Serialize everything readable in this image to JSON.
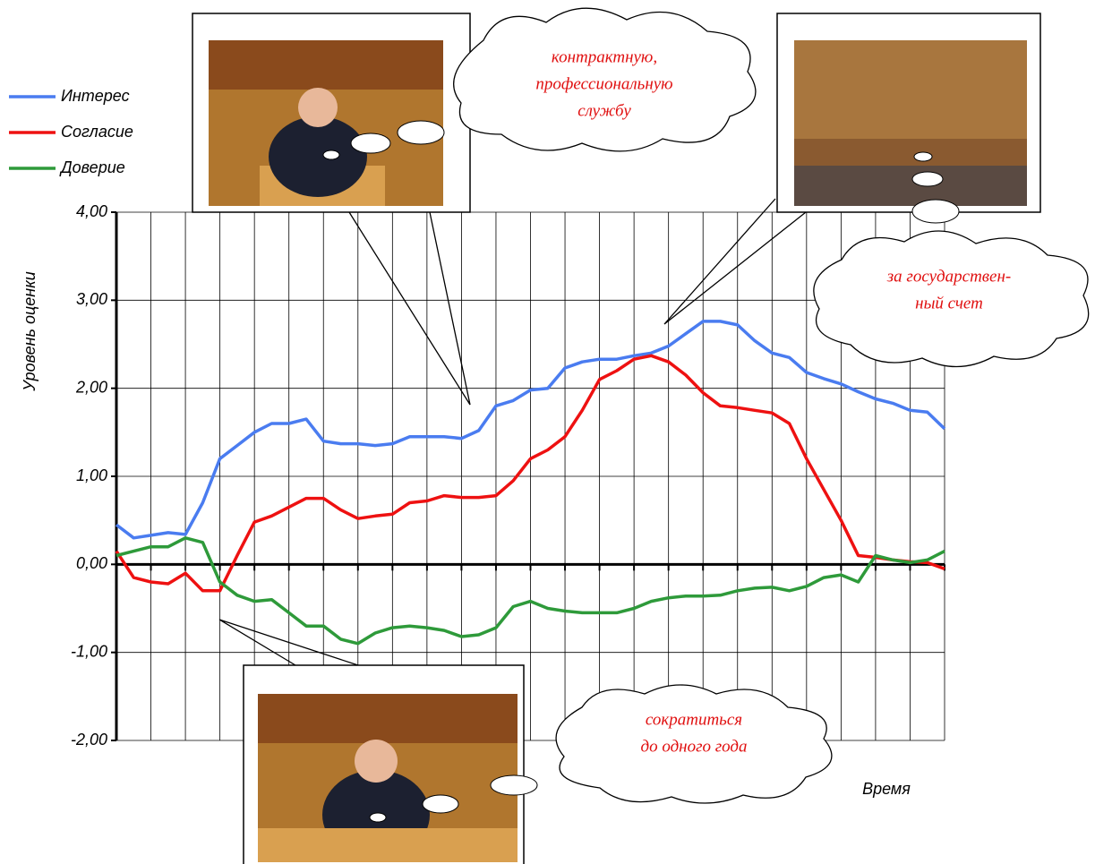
{
  "chart_data": {
    "type": "line",
    "y_axis_label": "Уровень оценки",
    "x_axis_label": "Время",
    "ylim": [
      -2,
      4
    ],
    "yticks": [
      {
        "value": -2,
        "label": "-2,00"
      },
      {
        "value": -1,
        "label": "-1,00"
      },
      {
        "value": 0,
        "label": "0,00"
      },
      {
        "value": 1,
        "label": "1,00"
      },
      {
        "value": 2,
        "label": "2,00"
      },
      {
        "value": 3,
        "label": "3,00"
      },
      {
        "value": 4,
        "label": "4,00"
      }
    ],
    "grid": true,
    "categories": [
      null,
      null,
      null,
      null,
      null,
      null,
      null,
      null,
      null,
      null,
      null,
      null,
      null,
      null,
      null,
      null,
      null,
      null,
      null,
      null,
      null,
      null,
      null,
      null,
      null,
      null,
      null,
      null,
      null,
      null,
      null,
      null,
      null,
      null,
      null,
      null,
      null,
      null,
      null,
      null,
      null,
      null,
      null,
      null,
      null,
      null,
      null,
      null,
      null
    ],
    "series": [
      {
        "name": "Интерес",
        "color": "#4a7cf0",
        "values": [
          0.45,
          0.3,
          0.33,
          0.36,
          0.34,
          0.7,
          1.2,
          1.35,
          1.5,
          1.6,
          1.6,
          1.65,
          1.4,
          1.37,
          1.37,
          1.35,
          1.37,
          1.45,
          1.45,
          1.45,
          1.43,
          1.52,
          1.8,
          1.86,
          1.98,
          2.0,
          2.23,
          2.3,
          2.33,
          2.33,
          2.37,
          2.4,
          2.48,
          2.62,
          2.76,
          2.76,
          2.72,
          2.54,
          2.4,
          2.35,
          2.18,
          2.11,
          2.05,
          1.96,
          1.88,
          1.83,
          1.75,
          1.73,
          1.54
        ]
      },
      {
        "name": "Согласие",
        "color": "#ee1111",
        "values": [
          0.15,
          -0.15,
          -0.2,
          -0.22,
          -0.1,
          -0.3,
          -0.3,
          0.1,
          0.48,
          0.55,
          0.65,
          0.75,
          0.75,
          0.62,
          0.52,
          0.55,
          0.57,
          0.7,
          0.72,
          0.78,
          0.76,
          0.76,
          0.78,
          0.95,
          1.2,
          1.3,
          1.45,
          1.75,
          2.1,
          2.2,
          2.33,
          2.37,
          2.3,
          2.15,
          1.95,
          1.8,
          1.78,
          1.75,
          1.72,
          1.6,
          1.2,
          0.85,
          0.5,
          0.1,
          0.08,
          0.05,
          0.03,
          0.02,
          -0.05
        ]
      },
      {
        "name": "Доверие",
        "color": "#2e9a3a",
        "values": [
          0.1,
          0.15,
          0.2,
          0.2,
          0.3,
          0.25,
          -0.2,
          -0.35,
          -0.42,
          -0.4,
          -0.55,
          -0.7,
          -0.7,
          -0.85,
          -0.9,
          -0.78,
          -0.72,
          -0.7,
          -0.72,
          -0.75,
          -0.82,
          -0.8,
          -0.72,
          -0.48,
          -0.42,
          -0.5,
          -0.53,
          -0.55,
          -0.55,
          -0.55,
          -0.5,
          -0.42,
          -0.38,
          -0.36,
          -0.36,
          -0.35,
          -0.3,
          -0.27,
          -0.26,
          -0.3,
          -0.25,
          -0.15,
          -0.12,
          -0.2,
          0.1,
          0.05,
          0.02,
          0.05,
          0.15
        ]
      }
    ],
    "annotations": [
      [
        "контрактную,",
        "профессиональную",
        "службу"
      ],
      [
        "за государствен-",
        "ный счет"
      ],
      [
        "сократиться",
        "до одного года"
      ]
    ]
  }
}
